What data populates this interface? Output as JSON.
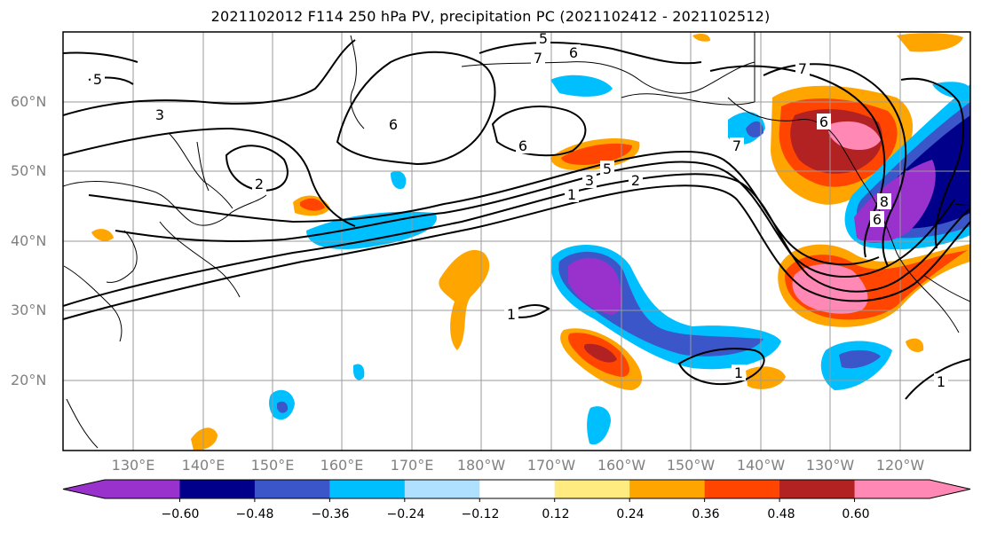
{
  "title": "2021102012 F114 250 hPa PV, precipitation PC (2021102412 - 2021102512)",
  "lat_labels": [
    "60°N",
    "50°N",
    "40°N",
    "30°N",
    "20°N"
  ],
  "lon_labels": [
    "130°E",
    "140°E",
    "150°E",
    "160°E",
    "170°E",
    "180°W",
    "170°W",
    "160°W",
    "150°W",
    "140°W",
    "130°W",
    "120°W"
  ],
  "colorbar": {
    "colors": [
      "#9932CC",
      "#00008B",
      "#3A56C8",
      "#00BFFF",
      "#B0E0FF",
      "#FFFFFF",
      "#FFEB80",
      "#FFA500",
      "#FF4500",
      "#B22222",
      "#FF88B4"
    ],
    "tick_labels": [
      "−0.60",
      "−0.48",
      "−0.36",
      "−0.24",
      "−0.12",
      "0.12",
      "0.24",
      "0.36",
      "0.48",
      "0.60"
    ]
  },
  "contour_labels": [
    "5",
    "5",
    "6",
    "7",
    "7",
    "3",
    "2",
    "6",
    "6",
    "5",
    "3",
    "2",
    "1",
    "1",
    "1",
    "1",
    "6",
    "8",
    "7",
    "6"
  ]
}
